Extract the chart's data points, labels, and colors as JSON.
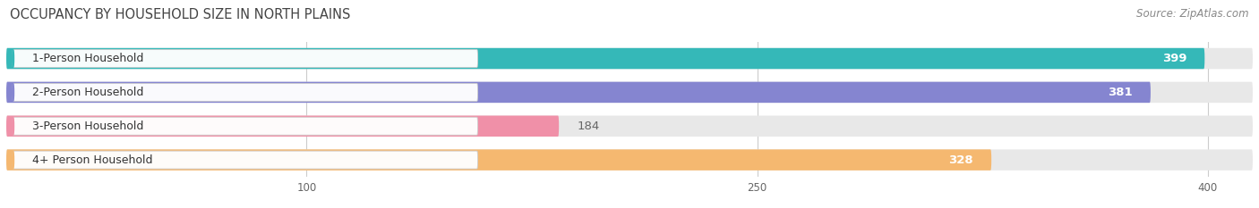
{
  "title": "OCCUPANCY BY HOUSEHOLD SIZE IN NORTH PLAINS",
  "source": "Source: ZipAtlas.com",
  "categories": [
    "1-Person Household",
    "2-Person Household",
    "3-Person Household",
    "4+ Person Household"
  ],
  "values": [
    399,
    381,
    184,
    328
  ],
  "bar_colors": [
    "#35b8b8",
    "#8585d0",
    "#f090a8",
    "#f5b870"
  ],
  "bar_bg_color": "#e8e8e8",
  "value_label_colors": [
    "white",
    "white",
    "#666666",
    "white"
  ],
  "xlim_max": 415,
  "xticks": [
    100,
    250,
    400
  ],
  "title_fontsize": 10.5,
  "source_fontsize": 8.5,
  "bar_label_fontsize": 9.5,
  "category_fontsize": 9,
  "bar_height": 0.62,
  "figsize": [
    14.06,
    2.33
  ],
  "dpi": 100
}
